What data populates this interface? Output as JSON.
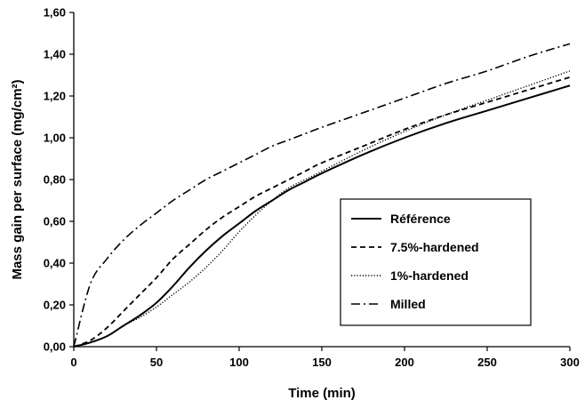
{
  "chart_data": {
    "type": "line",
    "title": "",
    "xlabel": "Time (min)",
    "ylabel": "Mass gain per surface (mg/cm²)",
    "xlim": [
      0,
      300
    ],
    "ylim": [
      0,
      1.6
    ],
    "x_ticks": [
      0,
      50,
      100,
      150,
      200,
      250,
      300
    ],
    "y_ticks": [
      0,
      0.2,
      0.4,
      0.6,
      0.8,
      1.0,
      1.2,
      1.4,
      1.6
    ],
    "x_tick_labels": [
      "0",
      "50",
      "100",
      "150",
      "200",
      "250",
      "300"
    ],
    "y_tick_labels": [
      "0,00",
      "0,20",
      "0,40",
      "0,60",
      "0,80",
      "1,00",
      "1,20",
      "1,40",
      "1,60"
    ],
    "grid": false,
    "legend_position": "center-right",
    "x": [
      0,
      10,
      20,
      30,
      40,
      50,
      60,
      70,
      80,
      90,
      100,
      110,
      120,
      130,
      140,
      150,
      175,
      200,
      225,
      250,
      275,
      300
    ],
    "series": [
      {
        "name": "Référence",
        "style": "solid",
        "values": [
          0,
          0.02,
          0.05,
          0.1,
          0.15,
          0.21,
          0.29,
          0.38,
          0.46,
          0.53,
          0.59,
          0.65,
          0.7,
          0.75,
          0.79,
          0.83,
          0.92,
          1.0,
          1.07,
          1.13,
          1.19,
          1.25
        ]
      },
      {
        "name": "7.5%-hardened",
        "style": "dashed",
        "values": [
          0,
          0.03,
          0.09,
          0.17,
          0.25,
          0.33,
          0.42,
          0.49,
          0.56,
          0.62,
          0.67,
          0.72,
          0.76,
          0.8,
          0.84,
          0.88,
          0.96,
          1.04,
          1.11,
          1.17,
          1.23,
          1.29
        ]
      },
      {
        "name": "1%-hardened",
        "style": "dotted",
        "values": [
          0,
          0.02,
          0.05,
          0.1,
          0.14,
          0.19,
          0.25,
          0.31,
          0.38,
          0.46,
          0.55,
          0.63,
          0.7,
          0.76,
          0.8,
          0.84,
          0.94,
          1.03,
          1.11,
          1.18,
          1.25,
          1.32
        ]
      },
      {
        "name": "Milled",
        "style": "dashdot",
        "values": [
          0,
          0.3,
          0.42,
          0.51,
          0.58,
          0.64,
          0.7,
          0.75,
          0.8,
          0.84,
          0.88,
          0.92,
          0.96,
          0.99,
          1.02,
          1.05,
          1.12,
          1.19,
          1.26,
          1.32,
          1.39,
          1.45
        ]
      }
    ]
  }
}
